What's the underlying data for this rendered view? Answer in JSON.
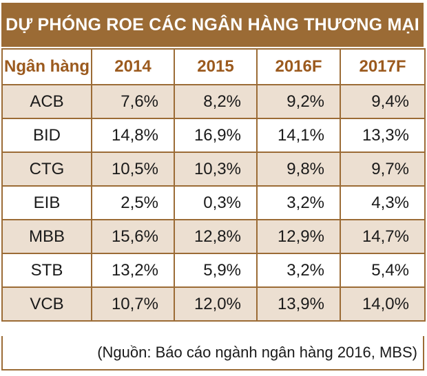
{
  "title": "DỰ PHÓNG ROE CÁC NGÂN HÀNG THƯƠNG MẠI",
  "headers": [
    "Ngân hàng",
    "2014",
    "2015",
    "2016F",
    "2017F"
  ],
  "rows": [
    {
      "bank": "ACB",
      "values": [
        "7,6%",
        "8,2%",
        "9,2%",
        "9,4%"
      ]
    },
    {
      "bank": "BID",
      "values": [
        "14,8%",
        "16,9%",
        "14,1%",
        "13,3%"
      ]
    },
    {
      "bank": "CTG",
      "values": [
        "10,5%",
        "10,3%",
        "9,8%",
        "9,7%"
      ]
    },
    {
      "bank": "EIB",
      "values": [
        "2,5%",
        "0,3%",
        "3,2%",
        "4,3%"
      ]
    },
    {
      "bank": "MBB",
      "values": [
        "15,6%",
        "12,8%",
        "12,9%",
        "14,7%"
      ]
    },
    {
      "bank": "STB",
      "values": [
        "13,2%",
        "5,9%",
        "3,2%",
        "5,4%"
      ]
    },
    {
      "bank": "VCB",
      "values": [
        "10,7%",
        "12,0%",
        "13,9%",
        "14,0%"
      ]
    }
  ],
  "source": "(Nguồn: Báo cáo ngành ngân hàng 2016, MBS)",
  "colors": {
    "accent": "#9b6b35",
    "header_text": "#9b5a1e",
    "row_shade": "#ecdfd1"
  }
}
